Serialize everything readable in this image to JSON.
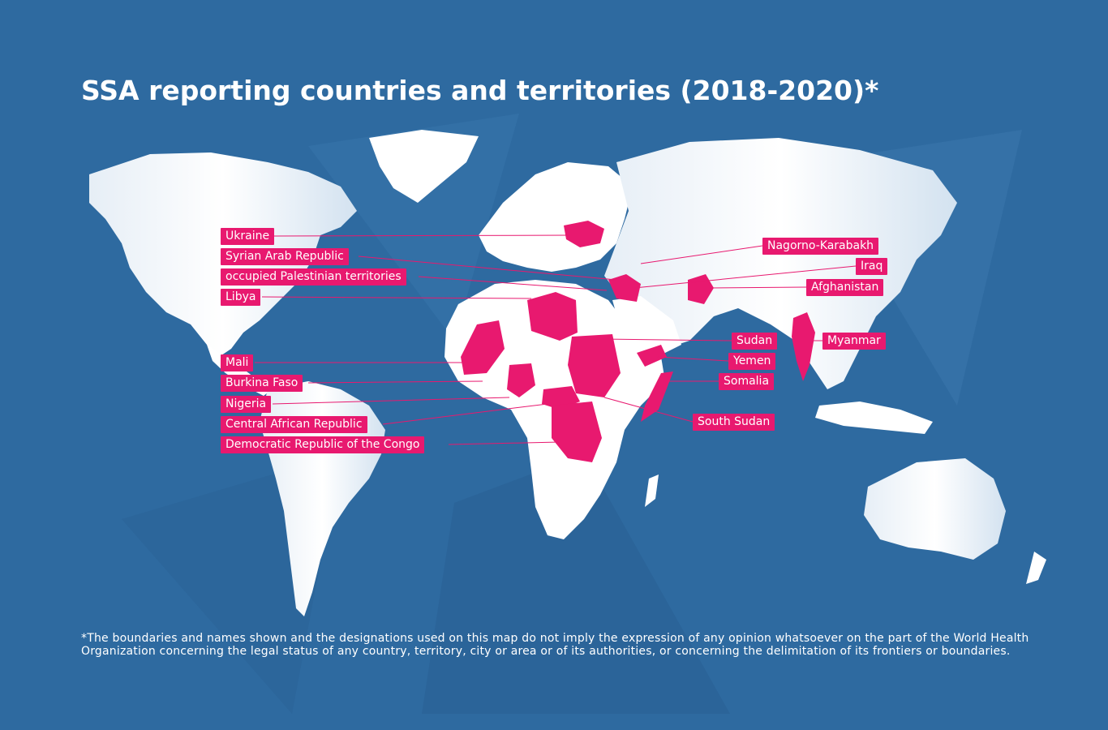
{
  "title": "SSA reporting countries and territories (2018-2020)*",
  "colors": {
    "ocean": "#2e6aa0",
    "land": "#ffffff",
    "highlight": "#e8196f",
    "leader_line": "#e8196f"
  },
  "labels": {
    "ukraine": "Ukraine",
    "syria": "Syrian Arab Republic",
    "opt": "occupied Palestinian territories",
    "libya": "Libya",
    "mali": "Mali",
    "burkina_faso": "Burkina Faso",
    "nigeria": "Nigeria",
    "car": "Central African Republic",
    "drc": "Democratic Republic of the Congo",
    "nagorno_karabakh": "Nagorno-Karabakh",
    "iraq": "Iraq",
    "afghanistan": "Afghanistan",
    "sudan": "Sudan",
    "myanmar": "Myanmar",
    "yemen": "Yemen",
    "somalia": "Somalia",
    "south_sudan": "South Sudan"
  },
  "footnote": "*The boundaries and names shown and the designations used on this map do not imply the expression of any opinion whatsoever on the part of the World Health Organization concerning the legal status of any country, territory, city or area or of its authorities, or concerning the delimitation of its frontiers or boundaries."
}
